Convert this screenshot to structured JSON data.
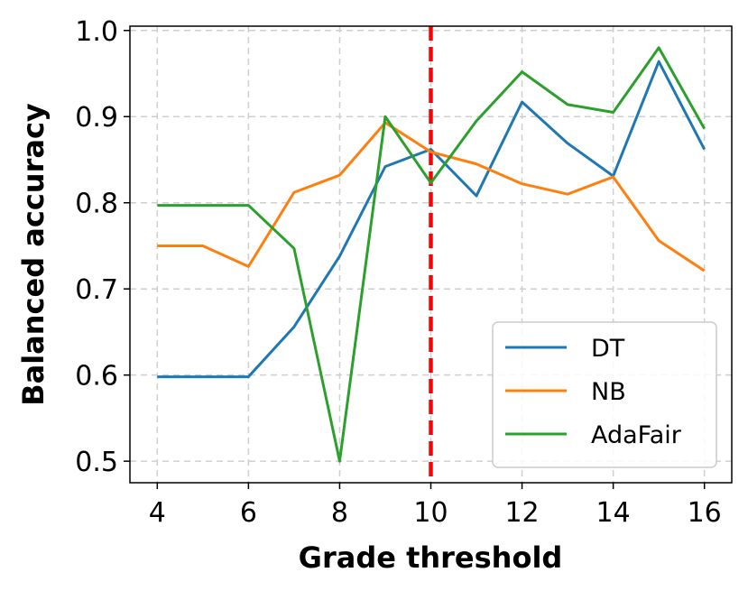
{
  "chart_data": {
    "type": "line",
    "xlabel": "Grade threshold",
    "ylabel": "Balanced accuracy",
    "xlim": [
      3.4,
      16.6
    ],
    "ylim": [
      0.475,
      1.005
    ],
    "xticks": [
      4,
      6,
      8,
      10,
      12,
      14,
      16
    ],
    "xtick_labels": [
      "4",
      "6",
      "8",
      "10",
      "12",
      "14",
      "16"
    ],
    "yticks": [
      0.5,
      0.6,
      0.7,
      0.8,
      0.9,
      1.0
    ],
    "ytick_labels": [
      "0.5",
      "0.6",
      "0.7",
      "0.8",
      "0.9",
      "1.0"
    ],
    "grid": true,
    "legend_position": "lower-right",
    "x": [
      4,
      5,
      6,
      7,
      8,
      9,
      10,
      11,
      12,
      13,
      14,
      15,
      16
    ],
    "series": [
      {
        "name": "DT",
        "color": "#1f77b4",
        "values": [
          0.598,
          0.598,
          0.598,
          0.656,
          0.738,
          0.842,
          0.862,
          0.808,
          0.917,
          0.869,
          0.831,
          0.964,
          0.862
        ]
      },
      {
        "name": "NB",
        "color": "#ff7f0e",
        "values": [
          0.75,
          0.75,
          0.726,
          0.812,
          0.832,
          0.893,
          0.859,
          0.845,
          0.822,
          0.81,
          0.83,
          0.756,
          0.721
        ]
      },
      {
        "name": "AdaFair",
        "color": "#2ca02c",
        "values": [
          0.797,
          0.797,
          0.797,
          0.747,
          0.5,
          0.9,
          0.823,
          0.895,
          0.952,
          0.914,
          0.905,
          0.98,
          0.886
        ]
      }
    ],
    "reference_line": {
      "x": 10,
      "color": "#ff0000",
      "style": "dashed"
    }
  }
}
